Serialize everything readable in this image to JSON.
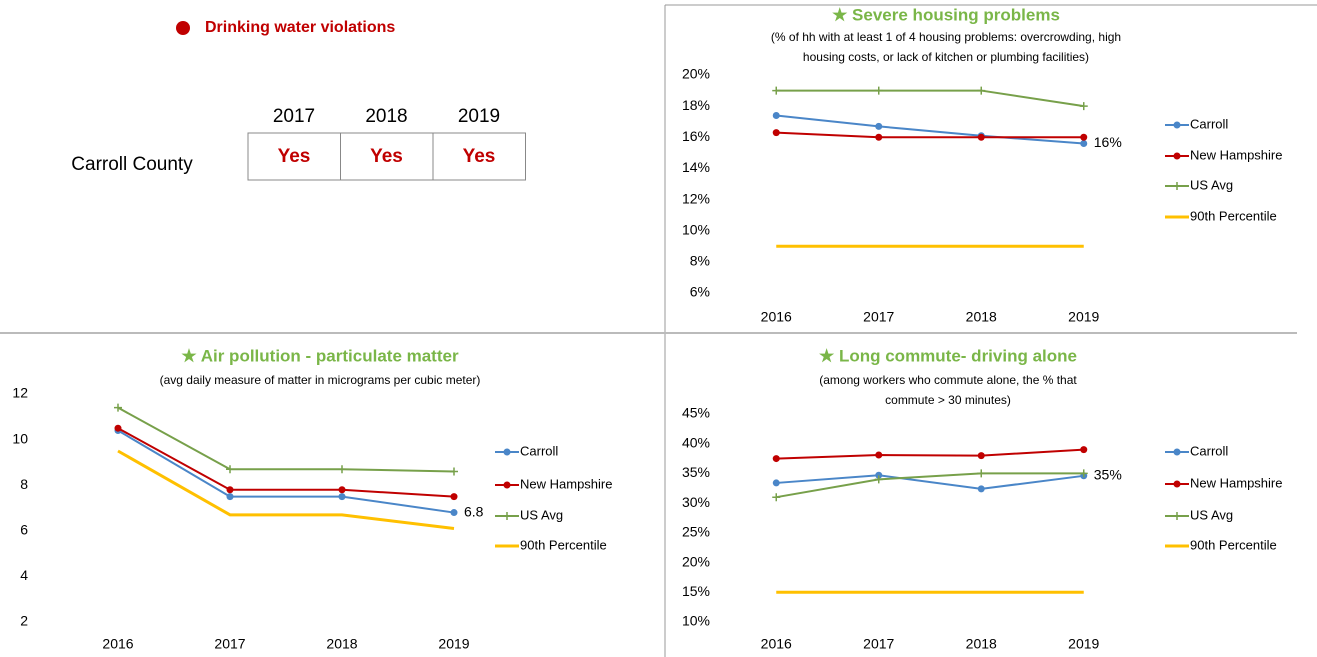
{
  "violations": {
    "title": "Drinking water violations",
    "row_label": "Carroll County",
    "years": [
      "2017",
      "2018",
      "2019"
    ],
    "values": [
      "Yes",
      "Yes",
      "Yes"
    ],
    "color": "#c00000"
  },
  "chart_data": [
    {
      "type": "line",
      "title": "★ Severe housing problems",
      "subtitle": [
        "(% of hh with at least 1 of 4 housing problems: overcrowding, high",
        "housing costs, or lack of kitchen or plumbing facilities)"
      ],
      "categories": [
        "2016",
        "2017",
        "2018",
        "2019"
      ],
      "ylim": [
        6,
        20
      ],
      "yticks": [
        {
          "value": 6,
          "label": "6%"
        },
        {
          "value": 8,
          "label": "8%"
        },
        {
          "value": 10,
          "label": "10%"
        },
        {
          "value": 12,
          "label": "12%"
        },
        {
          "value": 14,
          "label": "14%"
        },
        {
          "value": 16,
          "label": "16%"
        },
        {
          "value": 18,
          "label": "18%"
        },
        {
          "value": 20,
          "label": "20%"
        }
      ],
      "series": [
        {
          "name": "Carroll",
          "color": "#4a86c8",
          "marker": "circle",
          "values": [
            17.4,
            16.7,
            16.1,
            15.6
          ],
          "value_labels": [
            null,
            null,
            null,
            "16%"
          ]
        },
        {
          "name": "New Hampshire",
          "color": "#c00000",
          "marker": "circle",
          "values": [
            16.3,
            16.0,
            16.0,
            16.0
          ]
        },
        {
          "name": "US Avg",
          "color": "#77a04a",
          "marker": "plus",
          "values": [
            19,
            19,
            19,
            18
          ]
        },
        {
          "name": "90th Percentile",
          "color": "#ffc000",
          "marker": "none",
          "values": [
            9,
            9,
            9,
            9
          ]
        }
      ]
    },
    {
      "type": "line",
      "title": "★ Air pollution - particulate matter",
      "subtitle": [
        "(avg daily measure of matter in micrograms per cubic meter)"
      ],
      "categories": [
        "2016",
        "2017",
        "2018",
        "2019"
      ],
      "ylim": [
        2,
        12
      ],
      "yticks": [
        2,
        4,
        6,
        8,
        10,
        12
      ],
      "series": [
        {
          "name": "Carroll",
          "color": "#4a86c8",
          "marker": "circle",
          "values": [
            10.4,
            7.5,
            7.5,
            6.8
          ],
          "value_labels": [
            null,
            null,
            null,
            "6.8"
          ]
        },
        {
          "name": "New Hampshire",
          "color": "#c00000",
          "marker": "circle",
          "values": [
            10.5,
            7.8,
            7.8,
            7.5
          ]
        },
        {
          "name": "US Avg",
          "color": "#77a04a",
          "marker": "plus",
          "values": [
            11.4,
            8.7,
            8.7,
            8.6
          ]
        },
        {
          "name": "90th Percentile",
          "color": "#ffc000",
          "marker": "none",
          "values": [
            9.5,
            6.7,
            6.7,
            6.1
          ]
        }
      ]
    },
    {
      "type": "line",
      "title": "★ Long commute- driving alone",
      "subtitle": [
        "(among workers who commute alone, the % that",
        "commute > 30 minutes)"
      ],
      "categories": [
        "2016",
        "2017",
        "2018",
        "2019"
      ],
      "ylim": [
        10,
        45
      ],
      "yticks": [
        {
          "value": 10,
          "label": "10%"
        },
        {
          "value": 15,
          "label": "15%"
        },
        {
          "value": 20,
          "label": "20%"
        },
        {
          "value": 25,
          "label": "25%"
        },
        {
          "value": 30,
          "label": "30%"
        },
        {
          "value": 35,
          "label": "35%"
        },
        {
          "value": 40,
          "label": "40%"
        },
        {
          "value": 45,
          "label": "45%"
        }
      ],
      "series": [
        {
          "name": "Carroll",
          "color": "#4a86c8",
          "marker": "circle",
          "values": [
            33.4,
            34.7,
            32.4,
            34.6
          ],
          "value_labels": [
            null,
            null,
            null,
            "35%"
          ]
        },
        {
          "name": "New Hampshire",
          "color": "#c00000",
          "marker": "circle",
          "values": [
            37.5,
            38.1,
            38,
            39
          ]
        },
        {
          "name": "US Avg",
          "color": "#77a04a",
          "marker": "plus",
          "values": [
            31,
            34,
            35,
            35
          ]
        },
        {
          "name": "90th Percentile",
          "color": "#ffc000",
          "marker": "none",
          "values": [
            15,
            15,
            15,
            15
          ]
        }
      ]
    }
  ]
}
